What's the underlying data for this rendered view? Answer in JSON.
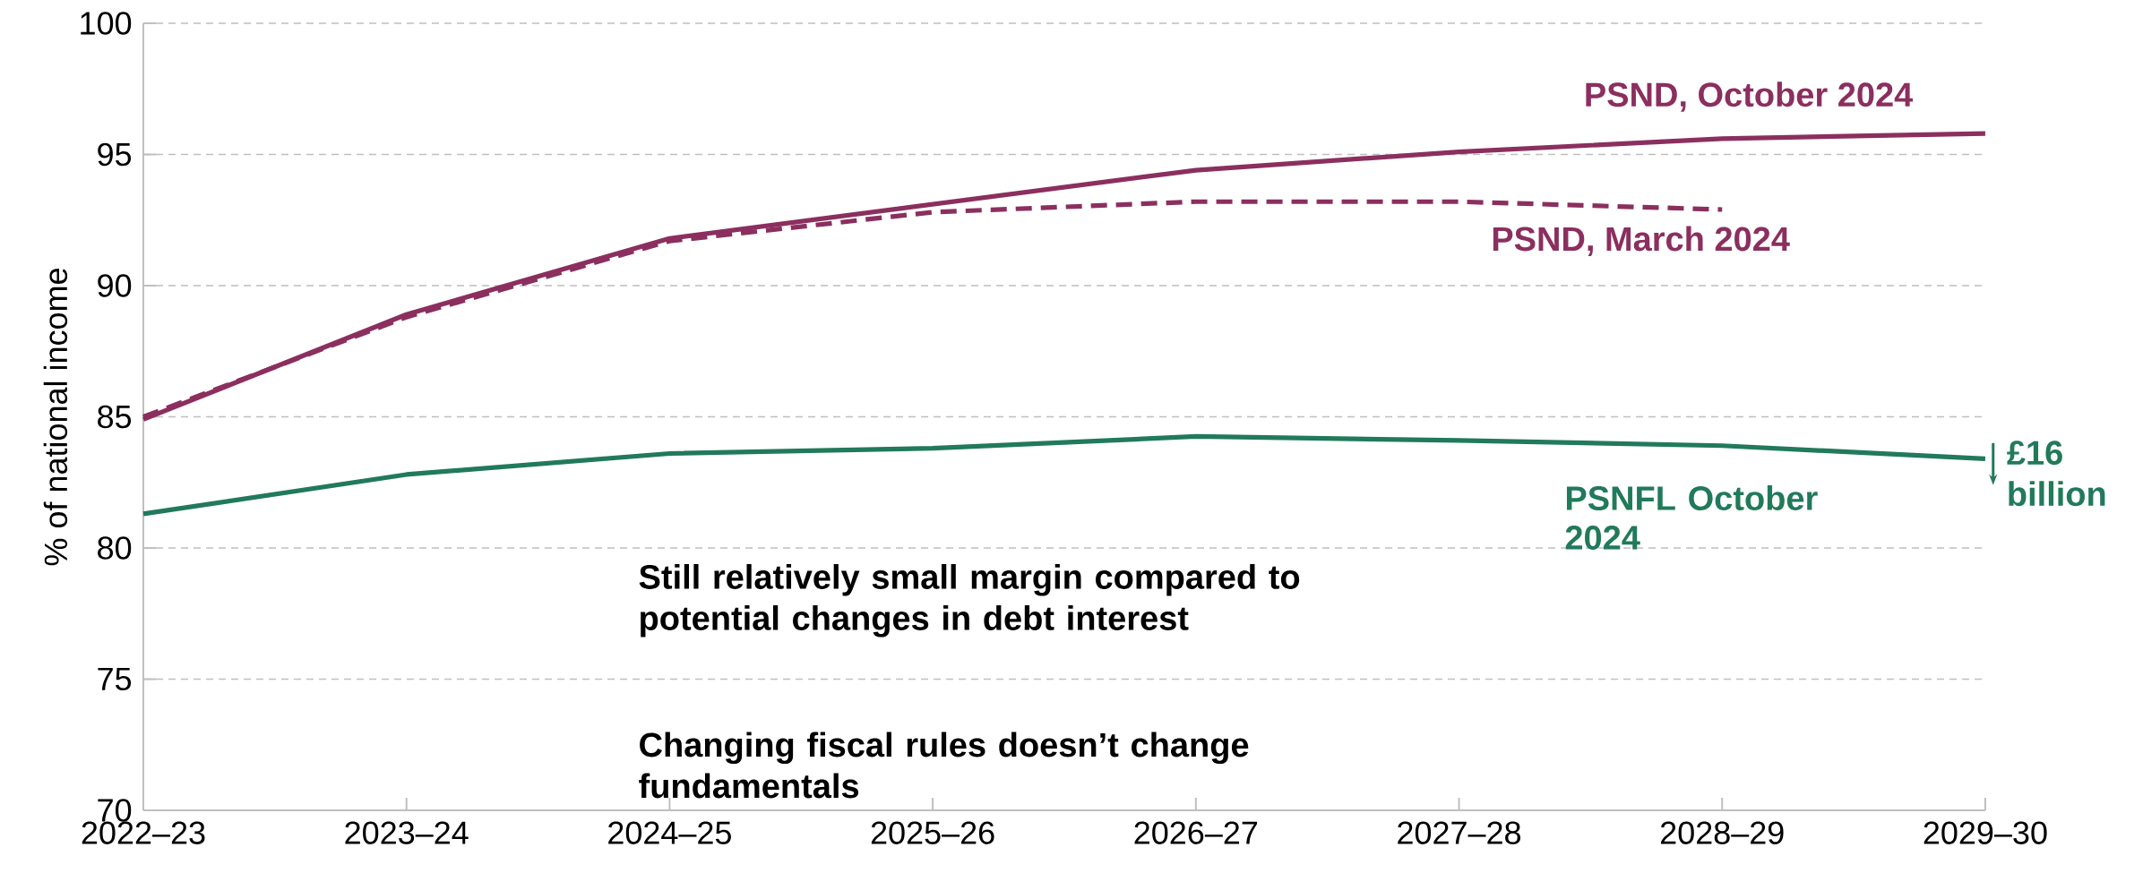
{
  "chart_data": {
    "type": "line",
    "ylabel": "% of national income",
    "categories": [
      "2022–23",
      "2023–24",
      "2024–25",
      "2025–26",
      "2026–27",
      "2027–28",
      "2028–29",
      "2029–30"
    ],
    "series": [
      {
        "name": "PSND, October 2024",
        "color": "#8b2f5f",
        "line_style": "solid",
        "values": [
          84.9,
          88.9,
          91.8,
          93.1,
          94.4,
          95.1,
          95.6,
          95.8
        ]
      },
      {
        "name": "PSND, March 2024",
        "color": "#8b2f5f",
        "line_style": "dashed",
        "values": [
          85.0,
          88.8,
          91.7,
          92.8,
          93.2,
          93.2,
          92.9,
          null
        ]
      },
      {
        "name": "PSNFL October 2024",
        "color": "#217a5a",
        "line_style": "solid",
        "values": [
          81.3,
          82.8,
          83.6,
          83.8,
          84.25,
          84.1,
          83.9,
          83.4
        ]
      }
    ],
    "ylim": [
      70,
      100
    ],
    "yticks": [
      70,
      75,
      80,
      85,
      90,
      95,
      100
    ],
    "grid": "y",
    "annotations": [
      "£16 billion",
      "Still relatively small margin compared to potential changes in debt interest",
      "Changing fiscal rules doesn’t change fundamentals"
    ]
  }
}
